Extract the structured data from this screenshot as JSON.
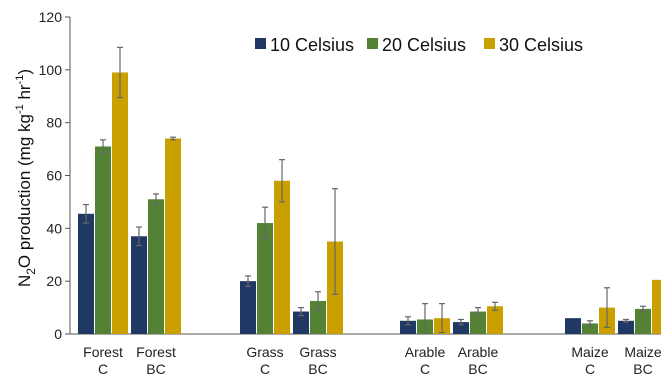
{
  "chart_data": {
    "type": "bar",
    "title": "",
    "ylabel": "N2O production  (mg kg-1 hr-1)",
    "ylabel_parts": {
      "n": "N",
      "sub2": "2",
      "o_prod": "O production  (mg kg",
      "sup1": "-1",
      "hr": " hr",
      "sup2": "-1",
      "close": ")"
    },
    "ylim": [
      0,
      120
    ],
    "yticks": [
      0,
      20,
      40,
      60,
      80,
      100,
      120
    ],
    "groups": [
      {
        "categories": [
          [
            "Forest",
            "C"
          ],
          [
            "Forest",
            "BC"
          ]
        ]
      },
      {
        "categories": [
          [
            "Grass",
            "C"
          ],
          [
            "Grass",
            "BC"
          ]
        ]
      },
      {
        "categories": [
          [
            "Arable",
            "C"
          ],
          [
            "Arable",
            "BC"
          ]
        ]
      },
      {
        "categories": [
          [
            "Maize",
            "C"
          ],
          [
            "Maize",
            "BC"
          ]
        ]
      }
    ],
    "categories": [
      "Forest C",
      "Forest BC",
      "Grass C",
      "Grass BC",
      "Arable C",
      "Arable BC",
      "Maize C",
      "Maize BC"
    ],
    "series": [
      {
        "name": "10 Celsius",
        "color": "#1f3864",
        "values": [
          45.5,
          37,
          20,
          8.5,
          5,
          4.5,
          6,
          5
        ],
        "errors": [
          3.5,
          3.5,
          2,
          1.5,
          1.5,
          1,
          0,
          0.5
        ]
      },
      {
        "name": "20 Celsius",
        "color": "#548235",
        "values": [
          71,
          51,
          42,
          12.5,
          5.5,
          8.5,
          4,
          9.5
        ],
        "errors": [
          2.5,
          2,
          6,
          3.5,
          6,
          1.5,
          1,
          1
        ]
      },
      {
        "name": "30 Celsius",
        "color": "#c9a000",
        "values": [
          99,
          74,
          58,
          35,
          6,
          10.5,
          10,
          20.5
        ],
        "errors": [
          9.5,
          0.5,
          8,
          20,
          5.5,
          1.5,
          7.5,
          0
        ]
      }
    ],
    "grid": false,
    "legend": "top-right"
  }
}
